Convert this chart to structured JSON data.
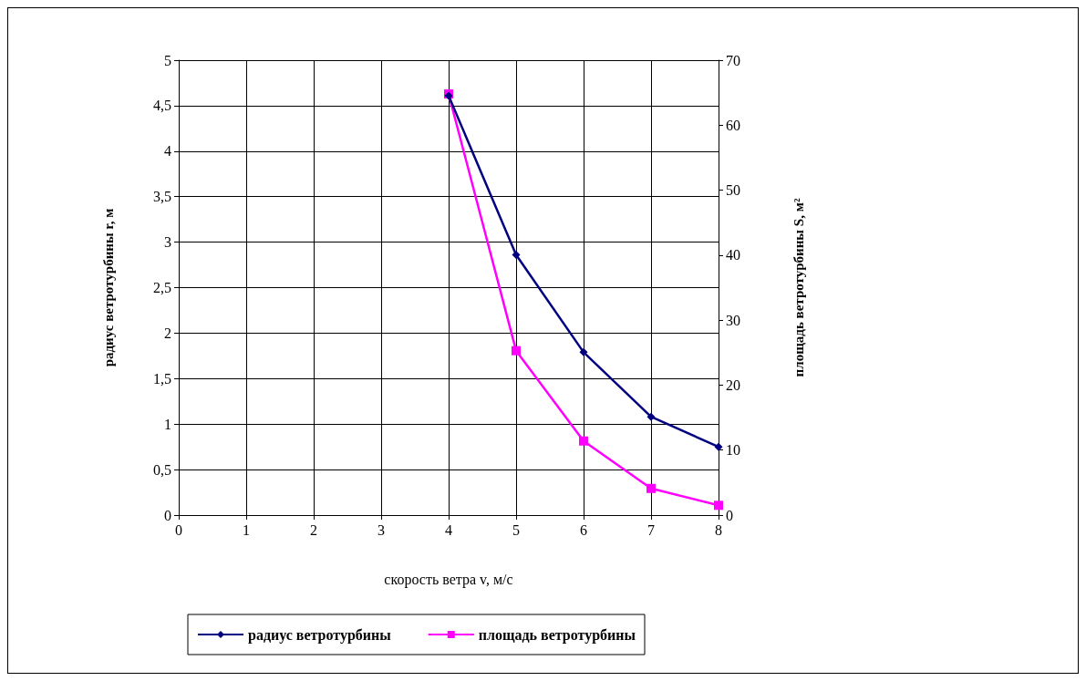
{
  "chart_data": {
    "type": "line",
    "xlabel": "скорость ветра v, м/с",
    "ylabel": "радиус ветротурбины r, м",
    "y2label": "площадь ветротурбины S, м²",
    "x": [
      4,
      5,
      6,
      7,
      8
    ],
    "series": [
      {
        "name": "радиус ветротурбины",
        "color": "#000080",
        "values": [
          4.61,
          2.86,
          1.79,
          1.08,
          0.75
        ],
        "marker": "diamond"
      },
      {
        "name": "площадь ветротурбины",
        "color": "#ff00ff",
        "values": [
          64.8,
          25.3,
          11.4,
          4.1,
          1.5
        ],
        "axis": "y2",
        "marker": "square"
      }
    ],
    "xlim": [
      0,
      8
    ],
    "xticks": [
      0,
      1,
      2,
      3,
      4,
      5,
      6,
      7,
      8
    ],
    "ylim": [
      0,
      5
    ],
    "yticks": [
      0,
      {
        "value": 0.5,
        "label": "0,5"
      },
      1,
      {
        "value": 1.5,
        "label": "1,5"
      },
      2,
      {
        "value": 2.5,
        "label": "2,5"
      },
      3,
      {
        "value": 3.5,
        "label": "3,5"
      },
      4,
      {
        "value": 4.5,
        "label": "4,5"
      },
      5
    ],
    "y2lim": [
      0,
      70
    ],
    "y2ticks": [
      0,
      10,
      20,
      30,
      40,
      50,
      60,
      70
    ],
    "grid": true,
    "legend": "bottom",
    "line_style": "solid"
  }
}
